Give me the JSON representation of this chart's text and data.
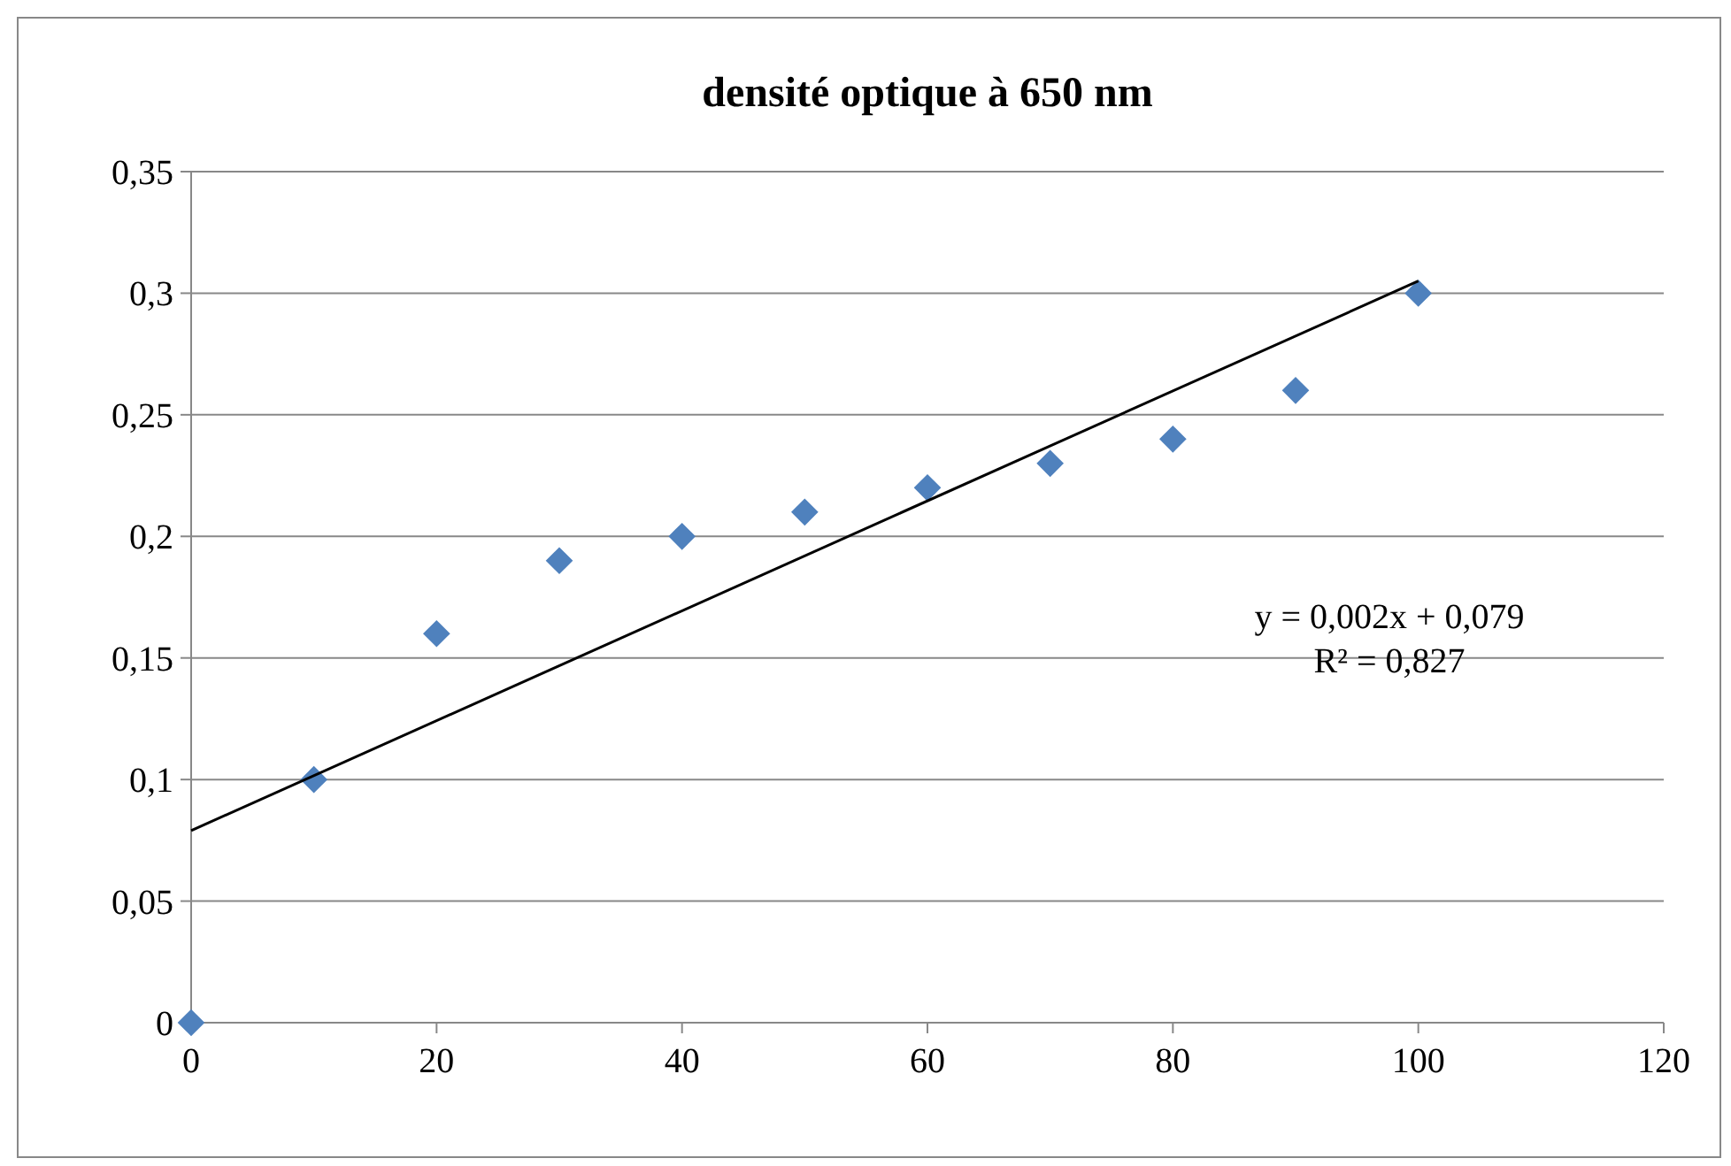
{
  "chart_data": {
    "type": "scatter",
    "title": "densité optique à 650 nm",
    "xlim": [
      0,
      120
    ],
    "xticks": [
      0,
      20,
      40,
      60,
      80,
      100,
      120
    ],
    "ylim": [
      0,
      0.35
    ],
    "yticks": [
      {
        "value": 0,
        "label": "0"
      },
      {
        "value": 0.05,
        "label": "0,05"
      },
      {
        "value": 0.1,
        "label": "0,1"
      },
      {
        "value": 0.15,
        "label": "0,15"
      },
      {
        "value": 0.2,
        "label": "0,2"
      },
      {
        "value": 0.25,
        "label": "0,25"
      },
      {
        "value": 0.3,
        "label": "0,3"
      },
      {
        "value": 0.35,
        "label": "0,35"
      }
    ],
    "grid": "y",
    "series": [
      {
        "marker": "diamond",
        "color": "#4f81bd",
        "x": [
          0,
          10,
          20,
          30,
          40,
          50,
          60,
          70,
          80,
          90,
          100
        ],
        "values": [
          0,
          0.1,
          0.16,
          0.19,
          0.2,
          0.21,
          0.22,
          0.23,
          0.24,
          0.26,
          0.3
        ]
      },
      {
        "type": "line",
        "color": "#000000",
        "x": [
          0,
          100
        ],
        "values": [
          0.079,
          0.305
        ],
        "line_style": "solid",
        "marker": "none"
      }
    ],
    "annotations": [
      "y = 0,002x + 0,079",
      "R² = 0,827"
    ]
  }
}
